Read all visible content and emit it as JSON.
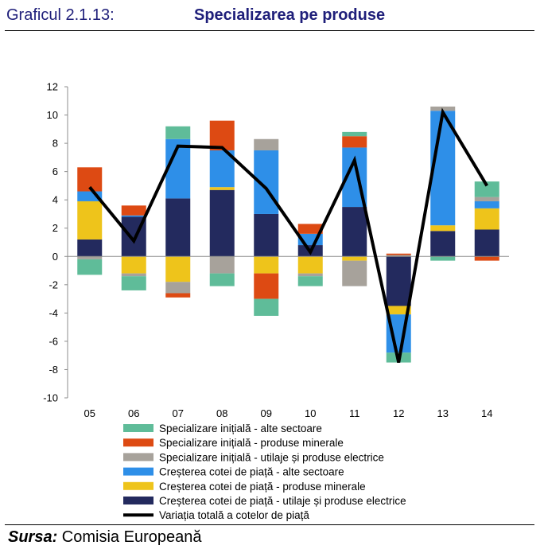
{
  "header": {
    "figure_label": "Graficul 2.1.13:",
    "title": "Specializarea pe produse"
  },
  "footer": {
    "source_label": "Sursa:",
    "source_text": " Comisia Europeană"
  },
  "chart_data": {
    "type": "bar",
    "stacked": true,
    "title": "Specializarea pe produse",
    "categories": [
      "05",
      "06",
      "07",
      "08",
      "09",
      "10",
      "11",
      "12",
      "13",
      "14"
    ],
    "ylim": [
      -10,
      12
    ],
    "yticks": [
      12,
      10,
      8,
      6,
      4,
      2,
      0,
      -2,
      -4,
      -6,
      -8,
      -10
    ],
    "grid": false,
    "legend_position": "bottom",
    "series": [
      {
        "name": "Creșterea cotei de piață - utilaje și produse electrice",
        "color": "#232a5e",
        "values": [
          1.2,
          2.8,
          4.1,
          4.7,
          3.0,
          0.8,
          3.5,
          -3.5,
          1.8,
          1.9
        ]
      },
      {
        "name": "Creșterea cotei de piață - produse minerale",
        "color": "#eec41b",
        "values": [
          2.7,
          -1.2,
          -1.8,
          0.2,
          -1.2,
          -1.2,
          -0.3,
          -0.6,
          0.4,
          1.5
        ]
      },
      {
        "name": "Creșterea cotei de piață - alte sectoare",
        "color": "#2e8fe8",
        "values": [
          0.7,
          0.1,
          4.2,
          2.6,
          4.5,
          0.8,
          4.2,
          -2.7,
          8.1,
          0.5
        ]
      },
      {
        "name": "Specializare inițială - utilaje și produse electrice",
        "color": "#a7a29b",
        "values": [
          -0.2,
          -0.2,
          -0.8,
          -1.2,
          0.8,
          -0.2,
          -1.8,
          0.1,
          0.3,
          0.3
        ]
      },
      {
        "name": "Specializare inițială - produse minerale",
        "color": "#dd4a13",
        "values": [
          1.7,
          0.7,
          -0.3,
          2.1,
          -1.8,
          0.7,
          0.8,
          0.1,
          0.0,
          -0.3
        ]
      },
      {
        "name": "Specializare inițială - alte sectoare",
        "color": "#5fbc99",
        "values": [
          -1.1,
          -1.0,
          0.9,
          -0.9,
          -1.2,
          -0.7,
          0.3,
          -0.7,
          -0.3,
          1.1
        ]
      }
    ],
    "line": {
      "name": "Variația totală a cotelor de piață",
      "color": "#000000",
      "values": [
        4.9,
        1.1,
        7.8,
        7.7,
        4.8,
        0.3,
        6.8,
        -7.5,
        10.2,
        5.0
      ]
    },
    "legend": [
      "Specializare inițială - alte sectoare",
      "Specializare inițială - produse minerale",
      "Specializare inițială - utilaje și produse electrice",
      "Creșterea cotei de piață - alte sectoare",
      "Creșterea cotei de piață - produse minerale",
      "Creșterea cotei de piață - utilaje și produse electrice",
      "Variația totală a cotelor de piață"
    ]
  }
}
